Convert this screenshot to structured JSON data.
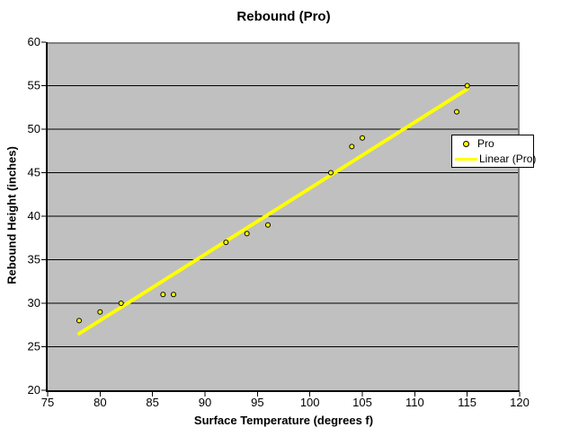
{
  "chart_data": {
    "type": "scatter",
    "title": "Rebound (Pro)",
    "xlabel": "Surface Temperature (degrees f)",
    "ylabel": "Rebound Height (inches)",
    "xlim": [
      75,
      120
    ],
    "ylim": [
      20,
      60
    ],
    "x_ticks": [
      75,
      80,
      85,
      90,
      95,
      100,
      105,
      110,
      115,
      120
    ],
    "y_ticks": [
      20,
      25,
      30,
      35,
      40,
      45,
      50,
      55,
      60
    ],
    "grid": "horizontal-only",
    "legend_position": "middle-right",
    "series": [
      {
        "name": "Pro",
        "marker": "circle",
        "marker_fill": "#FFFF00",
        "marker_stroke": "#000000",
        "points": [
          [
            78,
            28
          ],
          [
            80,
            29
          ],
          [
            82,
            30
          ],
          [
            86,
            31
          ],
          [
            87,
            31
          ],
          [
            92,
            37
          ],
          [
            94,
            38
          ],
          [
            96,
            39
          ],
          [
            102,
            45
          ],
          [
            104,
            48
          ],
          [
            105,
            49
          ],
          [
            114,
            52
          ],
          [
            115,
            55
          ]
        ]
      }
    ],
    "trendline": {
      "name": "Linear (Pro)",
      "color": "#FFFF00",
      "x1": 78,
      "y1": 26.5,
      "x2": 115,
      "y2": 54.6
    },
    "colors": {
      "background": "#FFFFFF",
      "plot_area_fill": "#C0C0C0",
      "plot_border": "#808080",
      "gridline": "#000000",
      "axis": "#000000",
      "tick_text": "#000000"
    }
  },
  "legend": {
    "items": [
      {
        "label": "Pro",
        "symbol": "circle-marker"
      },
      {
        "label": "Linear (Pro)",
        "symbol": "line"
      }
    ]
  }
}
